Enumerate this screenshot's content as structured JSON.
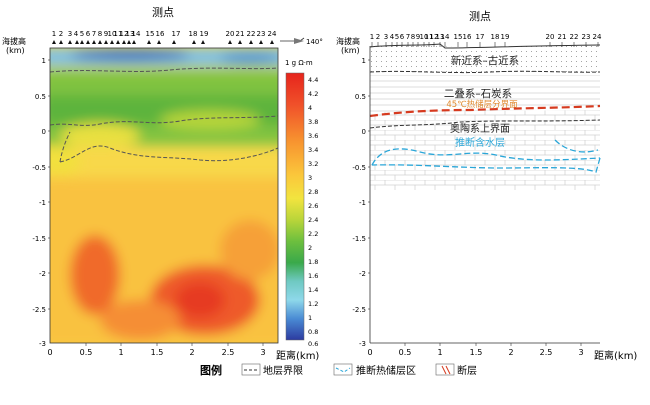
{
  "left_panel": {
    "title": "测点",
    "yaxis_label_line1": "海拔高",
    "yaxis_label_line2": "(km)",
    "xaxis_label": "距离(km)",
    "station_labels": [
      "1",
      "2",
      "3",
      "4",
      "5",
      "6",
      "7",
      "8",
      "9",
      "10",
      "11",
      "12",
      "13",
      "14",
      "15",
      "16",
      "17",
      "18",
      "19",
      "20",
      "21",
      "22",
      "23",
      "24"
    ],
    "direction_label": "140°",
    "x_ticks": [
      "0",
      "0.5",
      "1",
      "1.5",
      "2",
      "2.5",
      "3"
    ],
    "y_ticks": [
      "1",
      "0.5",
      "0",
      "-0.5",
      "-1",
      "-1.5",
      "-2",
      "-2.5",
      "-3"
    ],
    "colorbar_title": "1 g Ω·m",
    "colorbar_ticks": [
      "4.4",
      "4.2",
      "4",
      "3.8",
      "3.6",
      "3.4",
      "3.2",
      "3",
      "2.8",
      "2.6",
      "2.4",
      "2.2",
      "2",
      "1.8",
      "1.6",
      "1.4",
      "1.2",
      "1",
      "0.8",
      "0.6"
    ]
  },
  "right_panel": {
    "title": "测点",
    "yaxis_label_line1": "海拔高",
    "yaxis_label_line2": "(km)",
    "xaxis_label": "距离(km)",
    "station_labels": [
      "1",
      "2",
      "3",
      "4",
      "5",
      "6",
      "7",
      "8",
      "9",
      "10",
      "11",
      "12",
      "13",
      "14",
      "15",
      "16",
      "17",
      "18",
      "19",
      "20",
      "21",
      "22",
      "23",
      "24"
    ],
    "x_ticks": [
      "0",
      "0.5",
      "1",
      "1.5",
      "2",
      "2.5",
      "3"
    ],
    "y_ticks": [
      "1",
      "0.5",
      "0",
      "-0.5",
      "-1",
      "-1.5",
      "-2",
      "-2.5",
      "-3"
    ],
    "labels": {
      "neogene": "新近系–古近系",
      "permian": "二叠系–石炭系",
      "thermal_boundary": "45℃热储层分界面",
      "ordovician": "奥陶系上界面",
      "aquifer": "推断含水层"
    }
  },
  "legend": {
    "title": "图例",
    "items": [
      "地层界限",
      "推断热储层区",
      "断层"
    ]
  },
  "colors": {
    "boundary_red": "#d63a1f",
    "aquifer_blue": "#2aa6d8",
    "thermal_orange": "#e08a2e"
  }
}
